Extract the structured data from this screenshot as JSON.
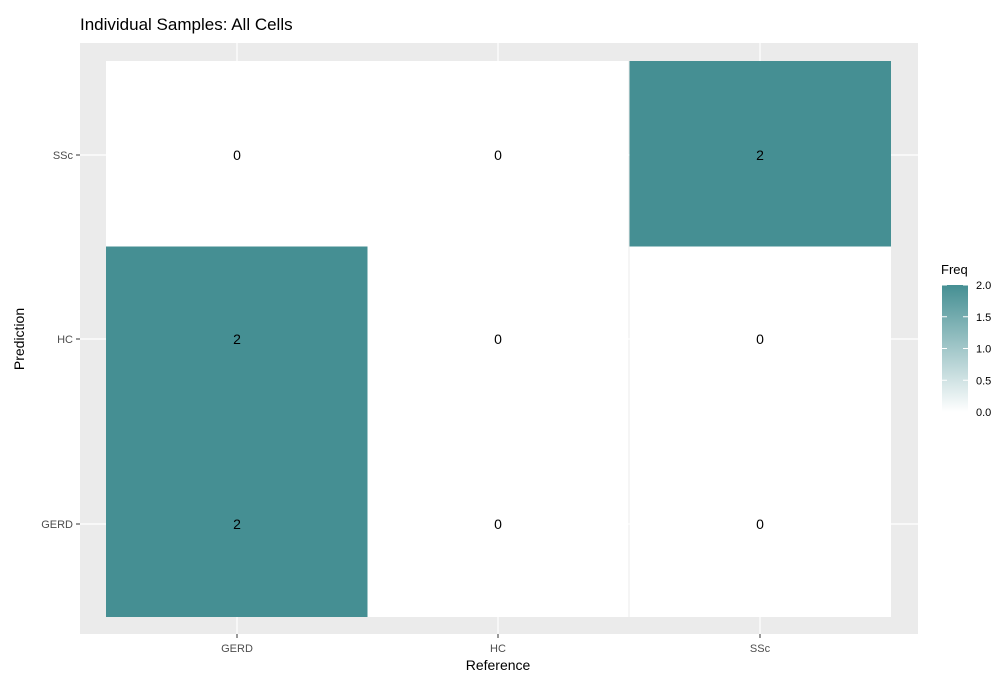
{
  "chart_data": {
    "type": "heatmap",
    "title": "Individual Samples: All Cells",
    "xlabel": "Reference",
    "ylabel": "Prediction",
    "x_categories": [
      "GERD",
      "HC",
      "SSc"
    ],
    "y_categories": [
      "GERD",
      "HC",
      "SSc"
    ],
    "cells": [
      {
        "reference": "GERD",
        "prediction": "SSc",
        "freq": 0,
        "label": "0"
      },
      {
        "reference": "HC",
        "prediction": "SSc",
        "freq": 0,
        "label": "0"
      },
      {
        "reference": "SSc",
        "prediction": "SSc",
        "freq": 2,
        "label": "2"
      },
      {
        "reference": "GERD",
        "prediction": "HC",
        "freq": 2,
        "label": "2"
      },
      {
        "reference": "HC",
        "prediction": "HC",
        "freq": 0,
        "label": "0"
      },
      {
        "reference": "SSc",
        "prediction": "HC",
        "freq": 0,
        "label": "0"
      },
      {
        "reference": "GERD",
        "prediction": "GERD",
        "freq": 2,
        "label": "2"
      },
      {
        "reference": "HC",
        "prediction": "GERD",
        "freq": 0,
        "label": "0"
      },
      {
        "reference": "SSc",
        "prediction": "GERD",
        "freq": 0,
        "label": "0"
      }
    ],
    "legend": {
      "title": "Freq",
      "placement": "right",
      "range": [
        0,
        2
      ],
      "ticks": [
        "0.0",
        "0.5",
        "1.0",
        "1.5",
        "2.0"
      ],
      "low_color": "#ffffff",
      "high_color": "#458f93"
    },
    "colors": {
      "panel_background": "#ebebeb",
      "grid": "#ffffff"
    },
    "grid": true
  }
}
